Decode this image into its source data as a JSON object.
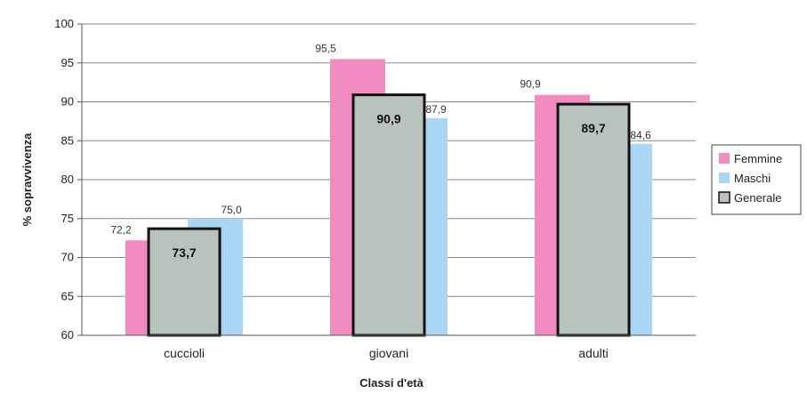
{
  "chart_data": {
    "type": "bar",
    "categories": [
      "cuccioli",
      "giovani",
      "adulti"
    ],
    "series": [
      {
        "name": "Femmine",
        "values": [
          72.2,
          95.5,
          90.9
        ],
        "labels": [
          "72,2",
          "95,5",
          "90,9"
        ],
        "color": "#f28cc0"
      },
      {
        "name": "Maschi",
        "values": [
          75.0,
          87.9,
          84.6
        ],
        "labels": [
          "75,0",
          "87,9",
          "84,6"
        ],
        "color": "#a9d6f2"
      },
      {
        "name": "Generale",
        "values": [
          73.7,
          90.9,
          89.7
        ],
        "labels": [
          "73,7",
          "90,9",
          "89,7"
        ],
        "color": "#b9c3bd"
      }
    ],
    "xlabel": "Classi d'età",
    "ylabel": "% sopravvivenza",
    "ylim": [
      60,
      100
    ],
    "yticks": [
      60,
      65,
      70,
      75,
      80,
      85,
      90,
      95,
      100
    ],
    "grid": true,
    "legend_position": "right"
  }
}
